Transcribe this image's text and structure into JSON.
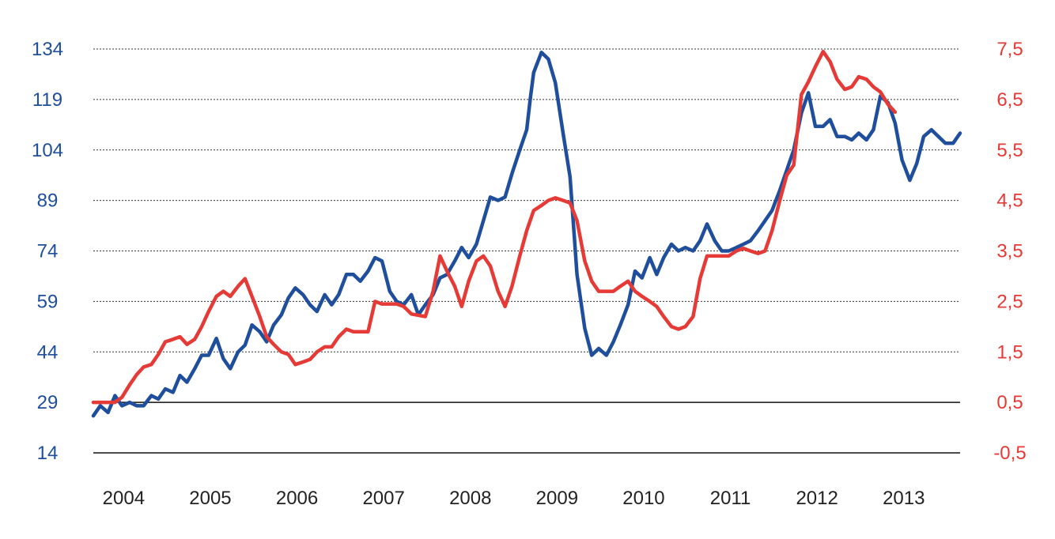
{
  "chart_data": {
    "type": "line",
    "title": "",
    "xlabel": "",
    "x_ticks": [
      "2004",
      "2005",
      "2006",
      "2007",
      "2008",
      "2009",
      "2010",
      "2011",
      "2012",
      "2013"
    ],
    "y_left": {
      "ticks": [
        "134",
        "119",
        "104",
        "89",
        "74",
        "59",
        "44",
        "29",
        "14"
      ],
      "range": [
        14,
        134
      ],
      "color": "#1f4e9c"
    },
    "y_right": {
      "ticks": [
        "7,5",
        "6,5",
        "5,5",
        "4,5",
        "3,5",
        "2,5",
        "1,5",
        "0,5",
        "-0,5"
      ],
      "range": [
        -0.5,
        7.5
      ],
      "color": "#e63a36"
    },
    "grid": "dotted horizontal",
    "series": [
      {
        "axis": "left",
        "color": "#1f4e9c",
        "points": [
          [
            2004.0,
            25
          ],
          [
            2004.08,
            28
          ],
          [
            2004.17,
            26
          ],
          [
            2004.25,
            31
          ],
          [
            2004.33,
            28
          ],
          [
            2004.42,
            29
          ],
          [
            2004.5,
            28
          ],
          [
            2004.58,
            28
          ],
          [
            2004.67,
            31
          ],
          [
            2004.75,
            30
          ],
          [
            2004.83,
            33
          ],
          [
            2004.92,
            32
          ],
          [
            2005.0,
            37
          ],
          [
            2005.08,
            35
          ],
          [
            2005.17,
            39
          ],
          [
            2005.25,
            43
          ],
          [
            2005.33,
            43
          ],
          [
            2005.42,
            48
          ],
          [
            2005.5,
            42
          ],
          [
            2005.58,
            39
          ],
          [
            2005.67,
            44
          ],
          [
            2005.75,
            46
          ],
          [
            2005.83,
            52
          ],
          [
            2005.92,
            50
          ],
          [
            2006.0,
            47
          ],
          [
            2006.08,
            52
          ],
          [
            2006.17,
            55
          ],
          [
            2006.25,
            60
          ],
          [
            2006.33,
            63
          ],
          [
            2006.42,
            61
          ],
          [
            2006.5,
            58
          ],
          [
            2006.58,
            56
          ],
          [
            2006.67,
            61
          ],
          [
            2006.75,
            58
          ],
          [
            2006.83,
            61
          ],
          [
            2006.92,
            67
          ],
          [
            2007.0,
            67
          ],
          [
            2007.08,
            65
          ],
          [
            2007.17,
            68
          ],
          [
            2007.25,
            72
          ],
          [
            2007.33,
            71
          ],
          [
            2007.42,
            62
          ],
          [
            2007.5,
            59
          ],
          [
            2007.58,
            58
          ],
          [
            2007.67,
            61
          ],
          [
            2007.75,
            55
          ],
          [
            2007.83,
            58
          ],
          [
            2007.92,
            61
          ],
          [
            2008.0,
            66
          ],
          [
            2008.08,
            67
          ],
          [
            2008.17,
            71
          ],
          [
            2008.25,
            75
          ],
          [
            2008.33,
            72
          ],
          [
            2008.42,
            76
          ],
          [
            2008.5,
            83
          ],
          [
            2008.58,
            90
          ],
          [
            2008.67,
            89
          ],
          [
            2008.75,
            90
          ],
          [
            2008.83,
            97
          ],
          [
            2008.92,
            104
          ],
          [
            2009.0,
            110
          ],
          [
            2009.04,
            119
          ],
          [
            2009.08,
            127
          ],
          [
            2009.17,
            133
          ],
          [
            2009.25,
            131
          ],
          [
            2009.33,
            124
          ],
          [
            2009.42,
            109
          ],
          [
            2009.5,
            96
          ],
          [
            2009.58,
            67
          ],
          [
            2009.67,
            51
          ],
          [
            2009.75,
            43
          ],
          [
            2009.83,
            45
          ],
          [
            2009.92,
            43
          ],
          [
            2010.0,
            47
          ],
          [
            2010.08,
            52
          ],
          [
            2010.17,
            58
          ],
          [
            2010.25,
            68
          ],
          [
            2010.33,
            66
          ],
          [
            2010.42,
            72
          ],
          [
            2010.5,
            67
          ],
          [
            2010.58,
            72
          ],
          [
            2010.67,
            76
          ],
          [
            2010.75,
            74
          ],
          [
            2010.83,
            75
          ],
          [
            2010.92,
            74
          ],
          [
            2011.0,
            77
          ],
          [
            2011.08,
            82
          ],
          [
            2011.17,
            77
          ],
          [
            2011.25,
            74
          ],
          [
            2011.33,
            74
          ],
          [
            2011.42,
            75
          ],
          [
            2011.5,
            76
          ],
          [
            2011.58,
            77
          ],
          [
            2011.67,
            80
          ],
          [
            2011.75,
            83
          ],
          [
            2011.83,
            86
          ],
          [
            2011.92,
            92
          ],
          [
            2012.0,
            98
          ],
          [
            2012.08,
            104
          ],
          [
            2012.17,
            115
          ],
          [
            2012.25,
            121
          ],
          [
            2012.29,
            116
          ],
          [
            2012.33,
            111
          ],
          [
            2012.42,
            111
          ],
          [
            2012.5,
            113
          ],
          [
            2012.58,
            108
          ],
          [
            2012.67,
            108
          ],
          [
            2012.75,
            107
          ],
          [
            2012.83,
            109
          ],
          [
            2012.92,
            107
          ],
          [
            2013.0,
            110
          ],
          [
            2013.08,
            120
          ],
          [
            2013.17,
            118
          ],
          [
            2013.25,
            112
          ],
          [
            2013.33,
            101
          ],
          [
            2013.42,
            95
          ],
          [
            2013.5,
            100
          ],
          [
            2013.58,
            108
          ],
          [
            2013.67,
            110
          ],
          [
            2013.75,
            108
          ],
          [
            2013.83,
            106
          ],
          [
            2013.92,
            106
          ],
          [
            2014.0,
            109
          ]
        ]
      },
      {
        "axis": "right",
        "color": "#e63a36",
        "points": [
          [
            2004.0,
            0.5
          ],
          [
            2004.25,
            0.5
          ],
          [
            2004.33,
            0.6
          ],
          [
            2004.42,
            0.85
          ],
          [
            2004.5,
            1.05
          ],
          [
            2004.58,
            1.2
          ],
          [
            2004.67,
            1.25
          ],
          [
            2004.75,
            1.45
          ],
          [
            2004.83,
            1.7
          ],
          [
            2004.92,
            1.75
          ],
          [
            2005.0,
            1.8
          ],
          [
            2005.08,
            1.65
          ],
          [
            2005.17,
            1.75
          ],
          [
            2005.25,
            2.0
          ],
          [
            2005.33,
            2.3
          ],
          [
            2005.42,
            2.6
          ],
          [
            2005.5,
            2.7
          ],
          [
            2005.58,
            2.6
          ],
          [
            2005.67,
            2.8
          ],
          [
            2005.75,
            2.95
          ],
          [
            2005.83,
            2.6
          ],
          [
            2005.92,
            2.2
          ],
          [
            2006.0,
            1.8
          ],
          [
            2006.08,
            1.65
          ],
          [
            2006.17,
            1.5
          ],
          [
            2006.25,
            1.45
          ],
          [
            2006.33,
            1.25
          ],
          [
            2006.42,
            1.3
          ],
          [
            2006.5,
            1.35
          ],
          [
            2006.58,
            1.5
          ],
          [
            2006.67,
            1.6
          ],
          [
            2006.75,
            1.6
          ],
          [
            2006.83,
            1.8
          ],
          [
            2006.92,
            1.95
          ],
          [
            2007.0,
            1.9
          ],
          [
            2007.17,
            1.9
          ],
          [
            2007.25,
            2.5
          ],
          [
            2007.33,
            2.45
          ],
          [
            2007.5,
            2.45
          ],
          [
            2007.58,
            2.4
          ],
          [
            2007.67,
            2.25
          ],
          [
            2007.83,
            2.2
          ],
          [
            2007.92,
            2.7
          ],
          [
            2008.0,
            3.4
          ],
          [
            2008.08,
            3.1
          ],
          [
            2008.17,
            2.8
          ],
          [
            2008.25,
            2.4
          ],
          [
            2008.33,
            2.9
          ],
          [
            2008.42,
            3.3
          ],
          [
            2008.5,
            3.4
          ],
          [
            2008.58,
            3.2
          ],
          [
            2008.67,
            2.7
          ],
          [
            2008.75,
            2.4
          ],
          [
            2008.83,
            2.8
          ],
          [
            2008.92,
            3.4
          ],
          [
            2009.0,
            3.9
          ],
          [
            2009.08,
            4.3
          ],
          [
            2009.17,
            4.4
          ],
          [
            2009.25,
            4.5
          ],
          [
            2009.33,
            4.55
          ],
          [
            2009.42,
            4.5
          ],
          [
            2009.5,
            4.45
          ],
          [
            2009.58,
            4.1
          ],
          [
            2009.67,
            3.3
          ],
          [
            2009.75,
            2.9
          ],
          [
            2009.83,
            2.7
          ],
          [
            2009.92,
            2.7
          ],
          [
            2010.0,
            2.7
          ],
          [
            2010.08,
            2.8
          ],
          [
            2010.17,
            2.9
          ],
          [
            2010.25,
            2.7
          ],
          [
            2010.33,
            2.6
          ],
          [
            2010.42,
            2.5
          ],
          [
            2010.5,
            2.4
          ],
          [
            2010.58,
            2.2
          ],
          [
            2010.67,
            2.0
          ],
          [
            2010.75,
            1.95
          ],
          [
            2010.83,
            2.0
          ],
          [
            2010.92,
            2.2
          ],
          [
            2011.0,
            2.95
          ],
          [
            2011.08,
            3.4
          ],
          [
            2011.17,
            3.4
          ],
          [
            2011.33,
            3.4
          ],
          [
            2011.42,
            3.5
          ],
          [
            2011.5,
            3.55
          ],
          [
            2011.58,
            3.5
          ],
          [
            2011.67,
            3.45
          ],
          [
            2011.75,
            3.5
          ],
          [
            2011.83,
            3.9
          ],
          [
            2011.92,
            4.5
          ],
          [
            2012.0,
            5.0
          ],
          [
            2012.08,
            5.2
          ],
          [
            2012.17,
            6.6
          ],
          [
            2012.25,
            6.85
          ],
          [
            2012.33,
            7.15
          ],
          [
            2012.42,
            7.45
          ],
          [
            2012.5,
            7.25
          ],
          [
            2012.58,
            6.9
          ],
          [
            2012.67,
            6.7
          ],
          [
            2012.75,
            6.75
          ],
          [
            2012.83,
            6.95
          ],
          [
            2012.92,
            6.9
          ],
          [
            2013.0,
            6.75
          ],
          [
            2013.08,
            6.65
          ],
          [
            2013.17,
            6.4
          ],
          [
            2013.25,
            6.25
          ]
        ]
      }
    ]
  }
}
